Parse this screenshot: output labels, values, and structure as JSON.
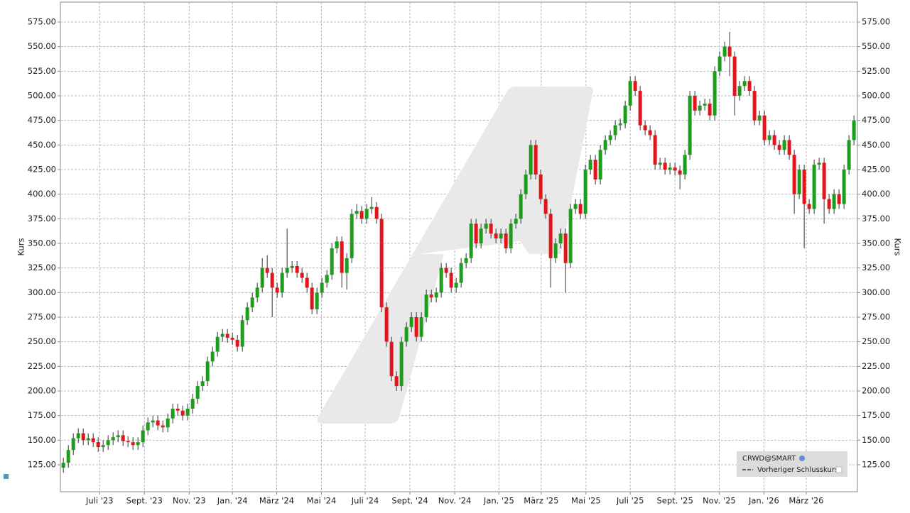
{
  "chart_data": {
    "type": "candlestick",
    "y_label": "Kurs",
    "ylim": [
      97.6,
      595.2
    ],
    "yticks": [
      {
        "value": 125,
        "label": "125.00"
      },
      {
        "value": 150,
        "label": "150.00"
      },
      {
        "value": 175,
        "label": "175.00"
      },
      {
        "value": 200,
        "label": "200.00"
      },
      {
        "value": 225,
        "label": "225.00"
      },
      {
        "value": 250,
        "label": "250.00"
      },
      {
        "value": 275,
        "label": "275.00"
      },
      {
        "value": 300,
        "label": "300.00"
      },
      {
        "value": 325,
        "label": "325.00"
      },
      {
        "value": 350,
        "label": "350.00"
      },
      {
        "value": 375,
        "label": "375.00"
      },
      {
        "value": 400,
        "label": "400.00"
      },
      {
        "value": 425,
        "label": "425.00"
      },
      {
        "value": 450,
        "label": "450.00"
      },
      {
        "value": 475,
        "label": "475.00"
      },
      {
        "value": 500,
        "label": "500.00"
      },
      {
        "value": 525,
        "label": "525.00"
      },
      {
        "value": 550,
        "label": "550.00"
      },
      {
        "value": 575,
        "label": "575.00"
      }
    ],
    "xlim": [
      -0.6,
      159.7
    ],
    "xticks": [
      {
        "value": 7.3,
        "label": "Juli '23"
      },
      {
        "value": 16.3,
        "label": "Sept. '23"
      },
      {
        "value": 25.3,
        "label": "Nov. '23"
      },
      {
        "value": 34,
        "label": "Jan. '24"
      },
      {
        "value": 42.9,
        "label": "März '24"
      },
      {
        "value": 51.9,
        "label": "Mai '24"
      },
      {
        "value": 60.7,
        "label": "Juli '24"
      },
      {
        "value": 69.7,
        "label": "Sept. '24"
      },
      {
        "value": 78.7,
        "label": "Nov. '24"
      },
      {
        "value": 87.6,
        "label": "Jan. '25"
      },
      {
        "value": 96.1,
        "label": "März '25"
      },
      {
        "value": 105.1,
        "label": "Mai '25"
      },
      {
        "value": 114,
        "label": "Juli '25"
      },
      {
        "value": 123,
        "label": "Sept. '25"
      },
      {
        "value": 131.9,
        "label": "Nov. '25"
      },
      {
        "value": 140.9,
        "label": "Jan. '26"
      },
      {
        "value": 149.4,
        "label": "März '26"
      }
    ],
    "grid": true,
    "up_color": "#1c9e1c",
    "down_color": "#e3141b",
    "series": [
      {
        "name": "CRWD@SMART",
        "open": [
          122,
          127,
          140,
          152,
          157,
          150,
          152,
          148,
          143,
          145,
          150,
          153,
          155,
          149,
          148,
          145,
          148,
          160,
          168,
          170,
          165,
          163,
          172,
          182,
          180,
          175,
          182,
          192,
          205,
          210,
          230,
          240,
          255,
          258,
          254,
          252,
          245,
          272,
          285,
          295,
          305,
          325,
          320,
          305,
          300,
          320,
          325,
          327,
          320,
          315,
          305,
          283,
          300,
          310,
          318,
          345,
          352,
          320,
          335,
          380,
          383,
          375,
          385,
          387,
          375,
          285,
          250,
          215,
          205,
          250,
          265,
          275,
          255,
          275,
          298,
          295,
          300,
          325,
          320,
          305,
          310,
          330,
          335,
          370,
          350,
          365,
          370,
          360,
          355,
          360,
          345,
          370,
          375,
          400,
          420,
          450,
          420,
          395,
          380,
          335,
          350,
          360,
          330,
          385,
          390,
          380,
          425,
          435,
          415,
          445,
          455,
          460,
          470,
          472,
          490,
          515,
          505,
          470,
          465,
          460,
          430,
          432,
          425,
          427,
          424,
          420,
          440,
          500,
          485,
          490,
          492,
          480,
          525,
          540,
          550,
          540,
          500,
          510,
          515,
          505,
          475,
          480,
          455,
          460,
          450,
          445,
          455,
          440,
          400,
          425,
          390,
          385,
          430,
          432,
          395,
          385,
          400,
          390,
          425,
          455
        ],
        "high": [
          132,
          145,
          157,
          162,
          162,
          157,
          157,
          153,
          150,
          155,
          158,
          160,
          160,
          154,
          153,
          153,
          165,
          173,
          175,
          175,
          170,
          177,
          187,
          187,
          185,
          187,
          197,
          210,
          215,
          235,
          245,
          260,
          263,
          263,
          259,
          257,
          277,
          290,
          300,
          310,
          335,
          338,
          325,
          310,
          325,
          365,
          332,
          332,
          325,
          320,
          310,
          305,
          315,
          323,
          350,
          357,
          357,
          340,
          385,
          390,
          388,
          390,
          397,
          392,
          380,
          290,
          255,
          220,
          255,
          270,
          280,
          280,
          280,
          303,
          303,
          305,
          330,
          330,
          325,
          315,
          335,
          340,
          375,
          375,
          370,
          375,
          375,
          365,
          365,
          365,
          375,
          380,
          405,
          425,
          455,
          455,
          425,
          400,
          385,
          355,
          365,
          365,
          390,
          395,
          395,
          430,
          440,
          440,
          450,
          460,
          465,
          475,
          477,
          495,
          520,
          520,
          510,
          475,
          470,
          465,
          437,
          437,
          432,
          432,
          429,
          445,
          505,
          505,
          495,
          497,
          497,
          530,
          545,
          555,
          565,
          545,
          515,
          520,
          520,
          510,
          485,
          485,
          465,
          465,
          455,
          460,
          460,
          445,
          430,
          430,
          395,
          435,
          437,
          437,
          400,
          405,
          405,
          430,
          460,
          480
        ],
        "low": [
          117,
          122,
          135,
          147,
          145,
          145,
          143,
          138,
          138,
          140,
          145,
          148,
          144,
          143,
          140,
          140,
          143,
          155,
          163,
          160,
          158,
          158,
          167,
          175,
          170,
          170,
          177,
          187,
          200,
          205,
          225,
          235,
          250,
          249,
          247,
          240,
          240,
          267,
          280,
          290,
          300,
          315,
          275,
          295,
          295,
          315,
          320,
          315,
          310,
          300,
          278,
          278,
          295,
          305,
          313,
          340,
          305,
          303,
          330,
          375,
          370,
          370,
          380,
          370,
          280,
          245,
          210,
          200,
          200,
          245,
          260,
          250,
          250,
          270,
          290,
          290,
          295,
          315,
          300,
          300,
          305,
          325,
          330,
          345,
          345,
          360,
          355,
          350,
          350,
          340,
          340,
          365,
          370,
          395,
          415,
          415,
          390,
          375,
          305,
          330,
          345,
          300,
          325,
          380,
          375,
          375,
          420,
          410,
          410,
          440,
          450,
          455,
          465,
          467,
          485,
          500,
          465,
          460,
          455,
          425,
          425,
          420,
          420,
          419,
          405,
          415,
          435,
          480,
          480,
          485,
          475,
          475,
          520,
          535,
          520,
          480,
          495,
          505,
          500,
          470,
          470,
          450,
          450,
          445,
          440,
          440,
          435,
          380,
          395,
          345,
          380,
          380,
          425,
          370,
          380,
          380,
          385,
          385,
          420,
          450
        ],
        "close": [
          127,
          140,
          152,
          157,
          150,
          152,
          148,
          143,
          145,
          150,
          153,
          155,
          149,
          148,
          145,
          148,
          160,
          168,
          170,
          165,
          163,
          172,
          182,
          180,
          175,
          182,
          192,
          205,
          210,
          230,
          240,
          255,
          258,
          254,
          252,
          245,
          272,
          285,
          295,
          305,
          325,
          320,
          305,
          300,
          320,
          325,
          327,
          320,
          315,
          305,
          283,
          300,
          310,
          318,
          345,
          352,
          320,
          335,
          380,
          383,
          375,
          385,
          387,
          375,
          285,
          250,
          215,
          205,
          250,
          265,
          275,
          255,
          275,
          298,
          295,
          300,
          325,
          320,
          305,
          310,
          330,
          335,
          370,
          350,
          365,
          370,
          360,
          355,
          360,
          345,
          370,
          375,
          400,
          420,
          450,
          420,
          395,
          380,
          335,
          350,
          360,
          330,
          385,
          390,
          380,
          425,
          435,
          415,
          445,
          455,
          460,
          470,
          472,
          490,
          515,
          505,
          470,
          465,
          460,
          430,
          432,
          425,
          427,
          424,
          420,
          440,
          500,
          485,
          490,
          492,
          480,
          525,
          540,
          550,
          540,
          500,
          510,
          515,
          505,
          475,
          480,
          455,
          460,
          450,
          445,
          455,
          440,
          400,
          425,
          390,
          385,
          430,
          432,
          395,
          385,
          400,
          390,
          425,
          455,
          475
        ]
      }
    ],
    "reference_line": {
      "name": "Vorheriger Schlusskurs"
    }
  }
}
